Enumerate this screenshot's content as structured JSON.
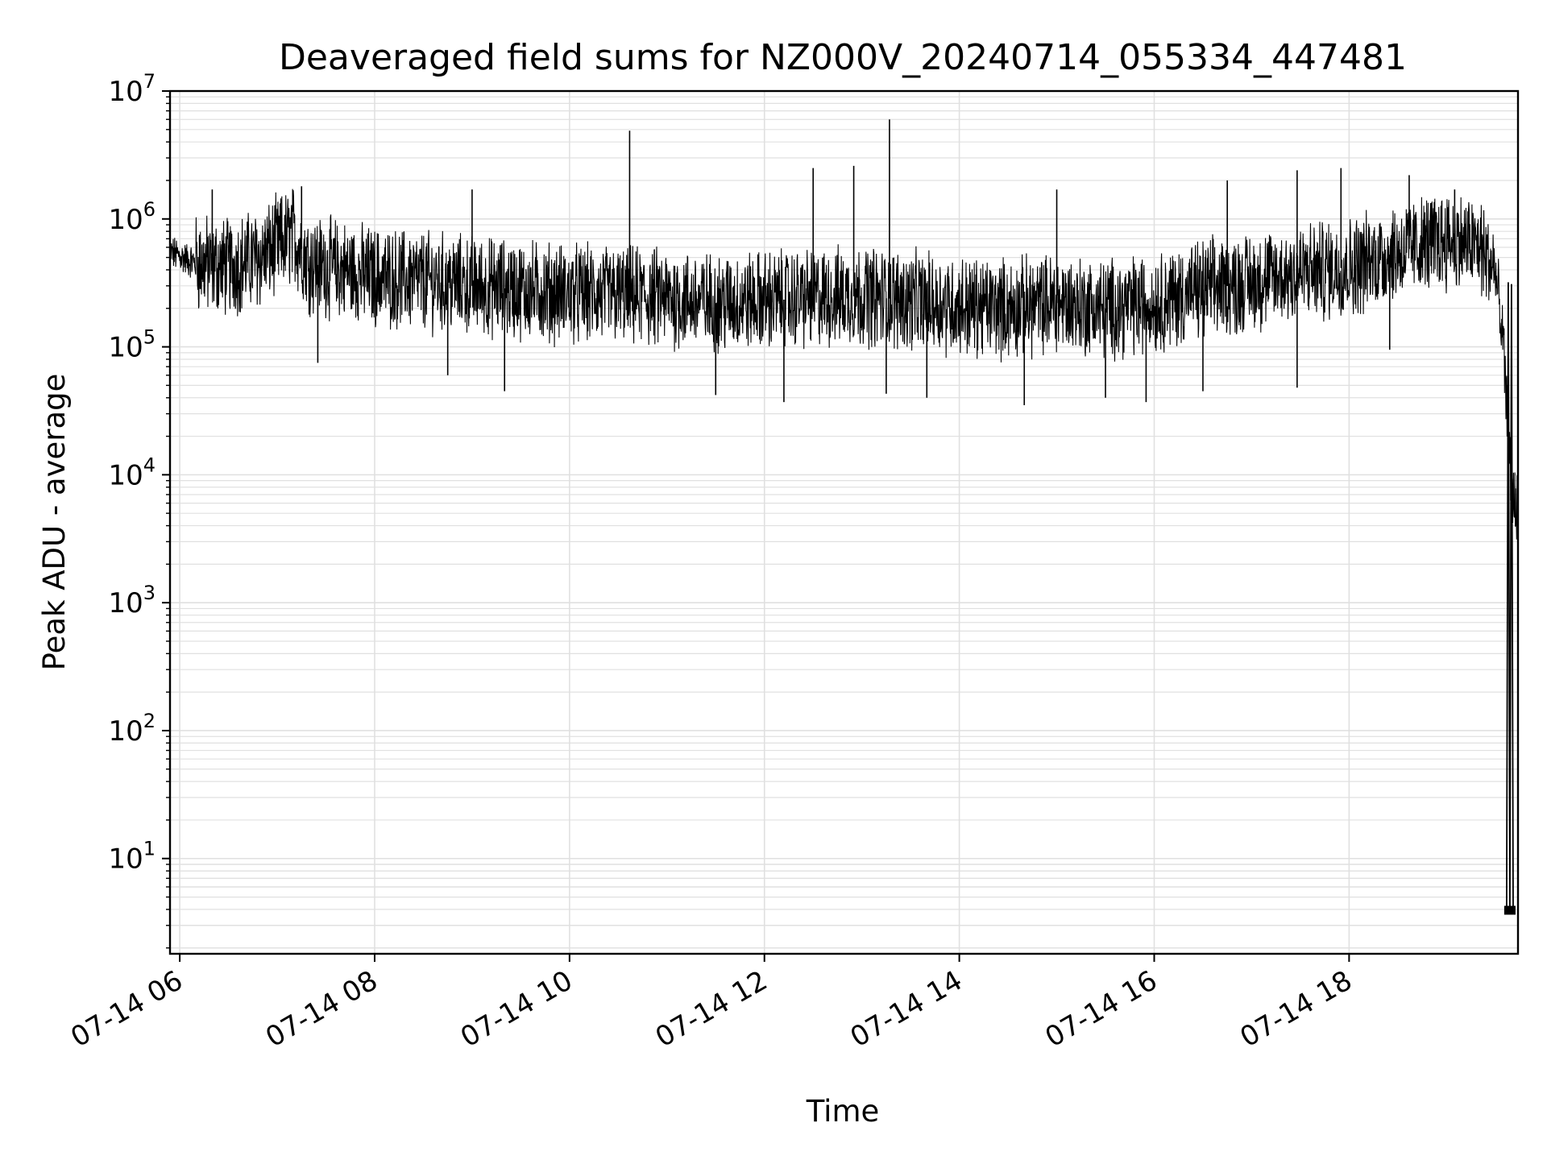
{
  "chart_data": {
    "type": "line",
    "title": "Deaveraged field sums for NZ000V_20240714_055334_447481",
    "xlabel": "Time",
    "ylabel": "Peak ADU - average",
    "y_scale": "log",
    "ylim": [
      1.8,
      10000000
    ],
    "xlim": [
      "07-14 05:54",
      "07-14 19:44"
    ],
    "grid": true,
    "line_color": "#000000",
    "grid_color": "#e0e0e0",
    "x_ticks": [
      {
        "label": "07-14 06",
        "value": "07-14 06:00"
      },
      {
        "label": "07-14 08",
        "value": "07-14 08:00"
      },
      {
        "label": "07-14 10",
        "value": "07-14 10:00"
      },
      {
        "label": "07-14 12",
        "value": "07-14 12:00"
      },
      {
        "label": "07-14 14",
        "value": "07-14 14:00"
      },
      {
        "label": "07-14 16",
        "value": "07-14 16:00"
      },
      {
        "label": "07-14 18",
        "value": "07-14 18:00"
      }
    ],
    "y_ticks": [
      {
        "base": "10",
        "exp": "1",
        "value": 10
      },
      {
        "base": "10",
        "exp": "2",
        "value": 100
      },
      {
        "base": "10",
        "exp": "3",
        "value": 1000
      },
      {
        "base": "10",
        "exp": "4",
        "value": 10000
      },
      {
        "base": "10",
        "exp": "5",
        "value": 100000
      },
      {
        "base": "10",
        "exp": "6",
        "value": 1000000
      },
      {
        "base": "10",
        "exp": "7",
        "value": 10000000
      }
    ],
    "series": [
      {
        "x": [
          "07-14 05:54",
          "07-14 06:10",
          "07-14 06:30",
          "07-14 06:50",
          "07-14 07:10",
          "07-14 07:20",
          "07-14 07:40",
          "07-14 08:00",
          "07-14 08:30",
          "07-14 09:00",
          "07-14 09:30",
          "07-14 10:00",
          "07-14 10:30",
          "07-14 11:00",
          "07-14 11:30",
          "07-14 12:00",
          "07-14 12:30",
          "07-14 13:00",
          "07-14 13:30",
          "07-14 14:00",
          "07-14 14:30",
          "07-14 15:00",
          "07-14 15:30",
          "07-14 16:00",
          "07-14 16:30",
          "07-14 17:00",
          "07-14 17:30",
          "07-14 18:00",
          "07-14 18:30",
          "07-14 19:00",
          "07-14 19:20",
          "07-14 19:30",
          "07-14 19:35",
          "07-14 19:38",
          "07-14 19:40",
          "07-14 19:44"
        ],
        "y": [
          550000,
          450000,
          420000,
          500000,
          750000,
          450000,
          400000,
          350000,
          330000,
          300000,
          280000,
          260000,
          250000,
          240000,
          220000,
          230000,
          240000,
          250000,
          230000,
          210000,
          200000,
          220000,
          200000,
          220000,
          280000,
          320000,
          380000,
          420000,
          550000,
          700000,
          600000,
          400000,
          100000,
          20000,
          8000,
          5000
        ]
      }
    ],
    "spikes": [
      {
        "x": "07-14 06:20",
        "y": 1700000
      },
      {
        "x": "07-14 07:15",
        "y": 1800000
      },
      {
        "x": "07-14 07:25",
        "y": 75000
      },
      {
        "x": "07-14 08:45",
        "y": 60000
      },
      {
        "x": "07-14 09:00",
        "y": 1700000
      },
      {
        "x": "07-14 09:20",
        "y": 45000
      },
      {
        "x": "07-14 10:37",
        "y": 4900000
      },
      {
        "x": "07-14 11:30",
        "y": 42000
      },
      {
        "x": "07-14 12:12",
        "y": 37000
      },
      {
        "x": "07-14 12:30",
        "y": 2500000
      },
      {
        "x": "07-14 12:55",
        "y": 2600000
      },
      {
        "x": "07-14 13:15",
        "y": 43000
      },
      {
        "x": "07-14 13:17",
        "y": 6000000
      },
      {
        "x": "07-14 13:40",
        "y": 40000
      },
      {
        "x": "07-14 14:40",
        "y": 35000
      },
      {
        "x": "07-14 15:00",
        "y": 1700000
      },
      {
        "x": "07-14 15:30",
        "y": 40000
      },
      {
        "x": "07-14 15:55",
        "y": 37000
      },
      {
        "x": "07-14 16:30",
        "y": 45000
      },
      {
        "x": "07-14 16:45",
        "y": 2000000
      },
      {
        "x": "07-14 17:28",
        "y": 2400000
      },
      {
        "x": "07-14 17:28",
        "y": 48000
      },
      {
        "x": "07-14 17:55",
        "y": 2500000
      },
      {
        "x": "07-14 18:25",
        "y": 95000
      },
      {
        "x": "07-14 18:37",
        "y": 2200000
      },
      {
        "x": "07-14 19:05",
        "y": 1700000
      }
    ],
    "tail_drops": [
      {
        "x": "07-14 19:37",
        "y": 3.8
      },
      {
        "x": "07-14 19:38",
        "y": 320000
      },
      {
        "x": "07-14 19:39",
        "y": 3.8
      },
      {
        "x": "07-14 19:40",
        "y": 310000
      },
      {
        "x": "07-14 19:41",
        "y": 3.8
      }
    ]
  }
}
